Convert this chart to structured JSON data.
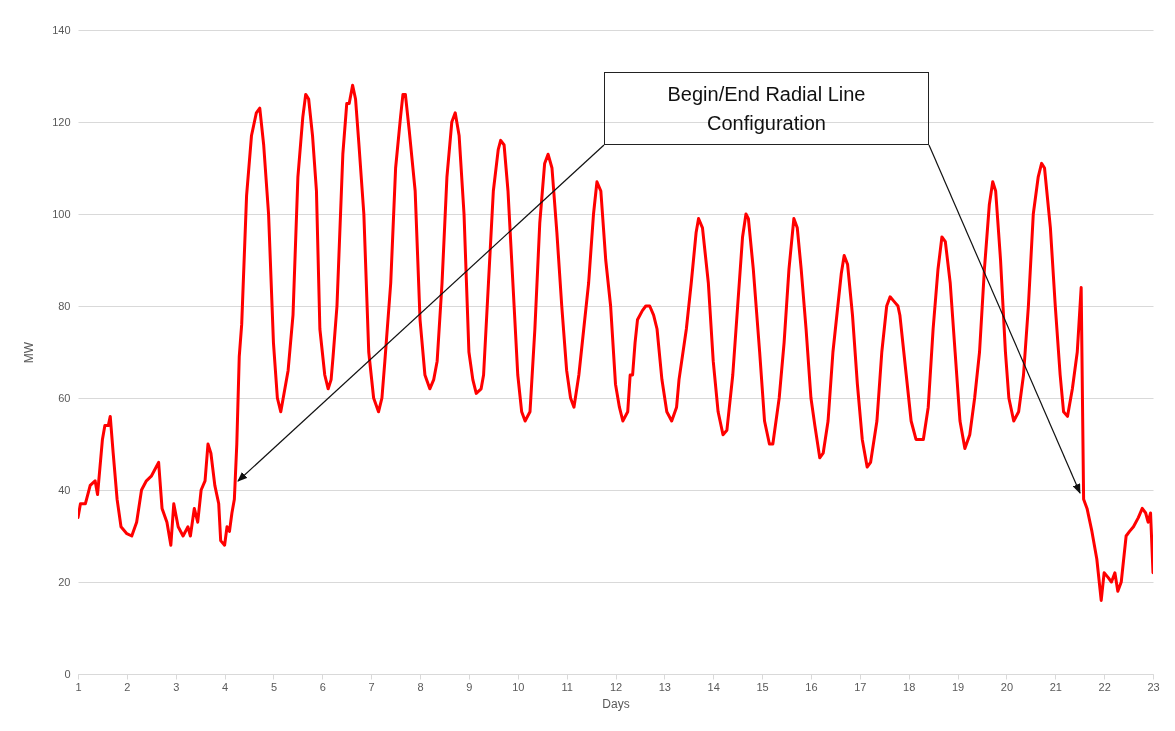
{
  "chart_data": {
    "type": "line",
    "xlabel": "Days",
    "ylabel": "MW",
    "xlim": [
      1,
      23
    ],
    "xticks": [
      1,
      2,
      3,
      4,
      5,
      6,
      7,
      8,
      9,
      10,
      11,
      12,
      13,
      14,
      15,
      16,
      17,
      18,
      19,
      20,
      21,
      22,
      23
    ],
    "ylim": [
      0,
      140
    ],
    "yticks": [
      0,
      20,
      40,
      60,
      80,
      100,
      120,
      140
    ],
    "grid": "y",
    "line_style": "solid",
    "marker": "none",
    "annotations": [
      "Begin/End Radial Line Configuration"
    ],
    "x": [
      1,
      1.05,
      1.15,
      1.25,
      1.35,
      1.4,
      1.5,
      1.55,
      1.62,
      1.66,
      1.72,
      1.8,
      1.88,
      2.0,
      2.1,
      2.2,
      2.3,
      2.4,
      2.5,
      2.6,
      2.65,
      2.72,
      2.82,
      2.9,
      2.96,
      3.05,
      3.15,
      3.25,
      3.3,
      3.38,
      3.45,
      3.52,
      3.6,
      3.66,
      3.72,
      3.8,
      3.88,
      3.92,
      4.0,
      4.05,
      4.1,
      4.15,
      4.2,
      4.25,
      4.3,
      4.35,
      4.45,
      4.55,
      4.65,
      4.72,
      4.8,
      4.9,
      5.0,
      5.08,
      5.15,
      5.2,
      5.3,
      5.4,
      5.5,
      5.6,
      5.66,
      5.72,
      5.8,
      5.88,
      5.95,
      6.05,
      6.12,
      6.18,
      6.22,
      6.3,
      6.42,
      6.5,
      6.55,
      6.62,
      6.68,
      6.75,
      6.85,
      6.95,
      7.05,
      7.15,
      7.22,
      7.28,
      7.4,
      7.5,
      7.6,
      7.65,
      7.7,
      7.78,
      7.9,
      8.0,
      8.1,
      8.2,
      8.28,
      8.35,
      8.45,
      8.55,
      8.65,
      8.72,
      8.8,
      8.9,
      9.0,
      9.08,
      9.15,
      9.25,
      9.3,
      9.4,
      9.5,
      9.6,
      9.65,
      9.72,
      9.8,
      9.9,
      10.0,
      10.08,
      10.15,
      10.25,
      10.35,
      10.45,
      10.55,
      10.62,
      10.7,
      10.8,
      10.9,
      11.0,
      11.08,
      11.15,
      11.25,
      11.35,
      11.45,
      11.55,
      11.62,
      11.7,
      11.8,
      11.9,
      12.0,
      12.08,
      12.15,
      12.25,
      12.3,
      12.35,
      12.4,
      12.45,
      12.55,
      12.62,
      12.7,
      12.78,
      12.85,
      12.95,
      13.05,
      13.15,
      13.25,
      13.3,
      13.45,
      13.55,
      13.65,
      13.7,
      13.78,
      13.9,
      14.0,
      14.1,
      14.2,
      14.28,
      14.4,
      14.5,
      14.6,
      14.67,
      14.72,
      14.82,
      14.95,
      15.05,
      15.15,
      15.22,
      15.35,
      15.45,
      15.55,
      15.65,
      15.72,
      15.8,
      15.9,
      16.0,
      16.08,
      16.18,
      16.25,
      16.35,
      16.45,
      16.55,
      16.62,
      16.68,
      16.75,
      16.85,
      16.95,
      17.05,
      17.15,
      17.22,
      17.35,
      17.45,
      17.55,
      17.62,
      17.7,
      17.78,
      17.82,
      17.95,
      18.05,
      18.15,
      18.3,
      18.4,
      18.5,
      18.6,
      18.68,
      18.75,
      18.85,
      18.95,
      19.05,
      19.15,
      19.25,
      19.35,
      19.45,
      19.55,
      19.65,
      19.72,
      19.78,
      19.88,
      19.98,
      20.05,
      20.15,
      20.25,
      20.35,
      20.45,
      20.55,
      20.65,
      20.72,
      20.78,
      20.9,
      21.0,
      21.1,
      21.17,
      21.25,
      21.35,
      21.45,
      21.53,
      21.58,
      21.65,
      21.75,
      21.85,
      21.94,
      22.0,
      22.08,
      22.15,
      22.22,
      22.28,
      22.35,
      22.45,
      22.52,
      22.6,
      22.7,
      22.78,
      22.85,
      22.9,
      22.95,
      23.0
    ],
    "series": [
      {
        "color": "#ff0000",
        "values": [
          34,
          37,
          37,
          41,
          42,
          39,
          51,
          54,
          54,
          56,
          48,
          38,
          32,
          30.5,
          30,
          33,
          40,
          42,
          43,
          45,
          46,
          36,
          33,
          28,
          37,
          32,
          30,
          32,
          30,
          36,
          33,
          40,
          42,
          50,
          48,
          41,
          37,
          29,
          28,
          32,
          31,
          35,
          38,
          50,
          69,
          76,
          104,
          117,
          122,
          123,
          115,
          100,
          72,
          60,
          57,
          60,
          66,
          78,
          108,
          121,
          126,
          125,
          117,
          105,
          75,
          65,
          62,
          64,
          69,
          80,
          113,
          124,
          124,
          128,
          125,
          115,
          100,
          70,
          60,
          57,
          60,
          68,
          85,
          110,
          121,
          126,
          126,
          118,
          105,
          77,
          65,
          62,
          64,
          68,
          85,
          108,
          120,
          122,
          117,
          100,
          70,
          64,
          61,
          62,
          65,
          85,
          105,
          114,
          116,
          115,
          105,
          85,
          65,
          57,
          55,
          57,
          75,
          98,
          111,
          113,
          110,
          96,
          80,
          66,
          60,
          58,
          65,
          75,
          85,
          100,
          107,
          105,
          90,
          80,
          63,
          58,
          55,
          57,
          65,
          65,
          72,
          77,
          79,
          80,
          80,
          78,
          75,
          64,
          57,
          55,
          58,
          64,
          75,
          85,
          96,
          99,
          97,
          85,
          68,
          57,
          52,
          53,
          65,
          80,
          95,
          100,
          99,
          88,
          70,
          55,
          50,
          50,
          60,
          72,
          88,
          99,
          97,
          88,
          75,
          60,
          54,
          47,
          48,
          55,
          70,
          80,
          87,
          91,
          89,
          78,
          63,
          51,
          45,
          46,
          55,
          70,
          80,
          82,
          81,
          80,
          78,
          65,
          55,
          51,
          51,
          58,
          75,
          88,
          95,
          94,
          85,
          70,
          55,
          49,
          52,
          60,
          70,
          88,
          102,
          107,
          105,
          90,
          70,
          60,
          55,
          57,
          65,
          80,
          100,
          108,
          111,
          110,
          97,
          80,
          65,
          57,
          56,
          62,
          70,
          84,
          38,
          36,
          31,
          25,
          16,
          22,
          21,
          20,
          22,
          18,
          20,
          30,
          31,
          32,
          34,
          36,
          35,
          33,
          35,
          22
        ]
      }
    ]
  }
}
